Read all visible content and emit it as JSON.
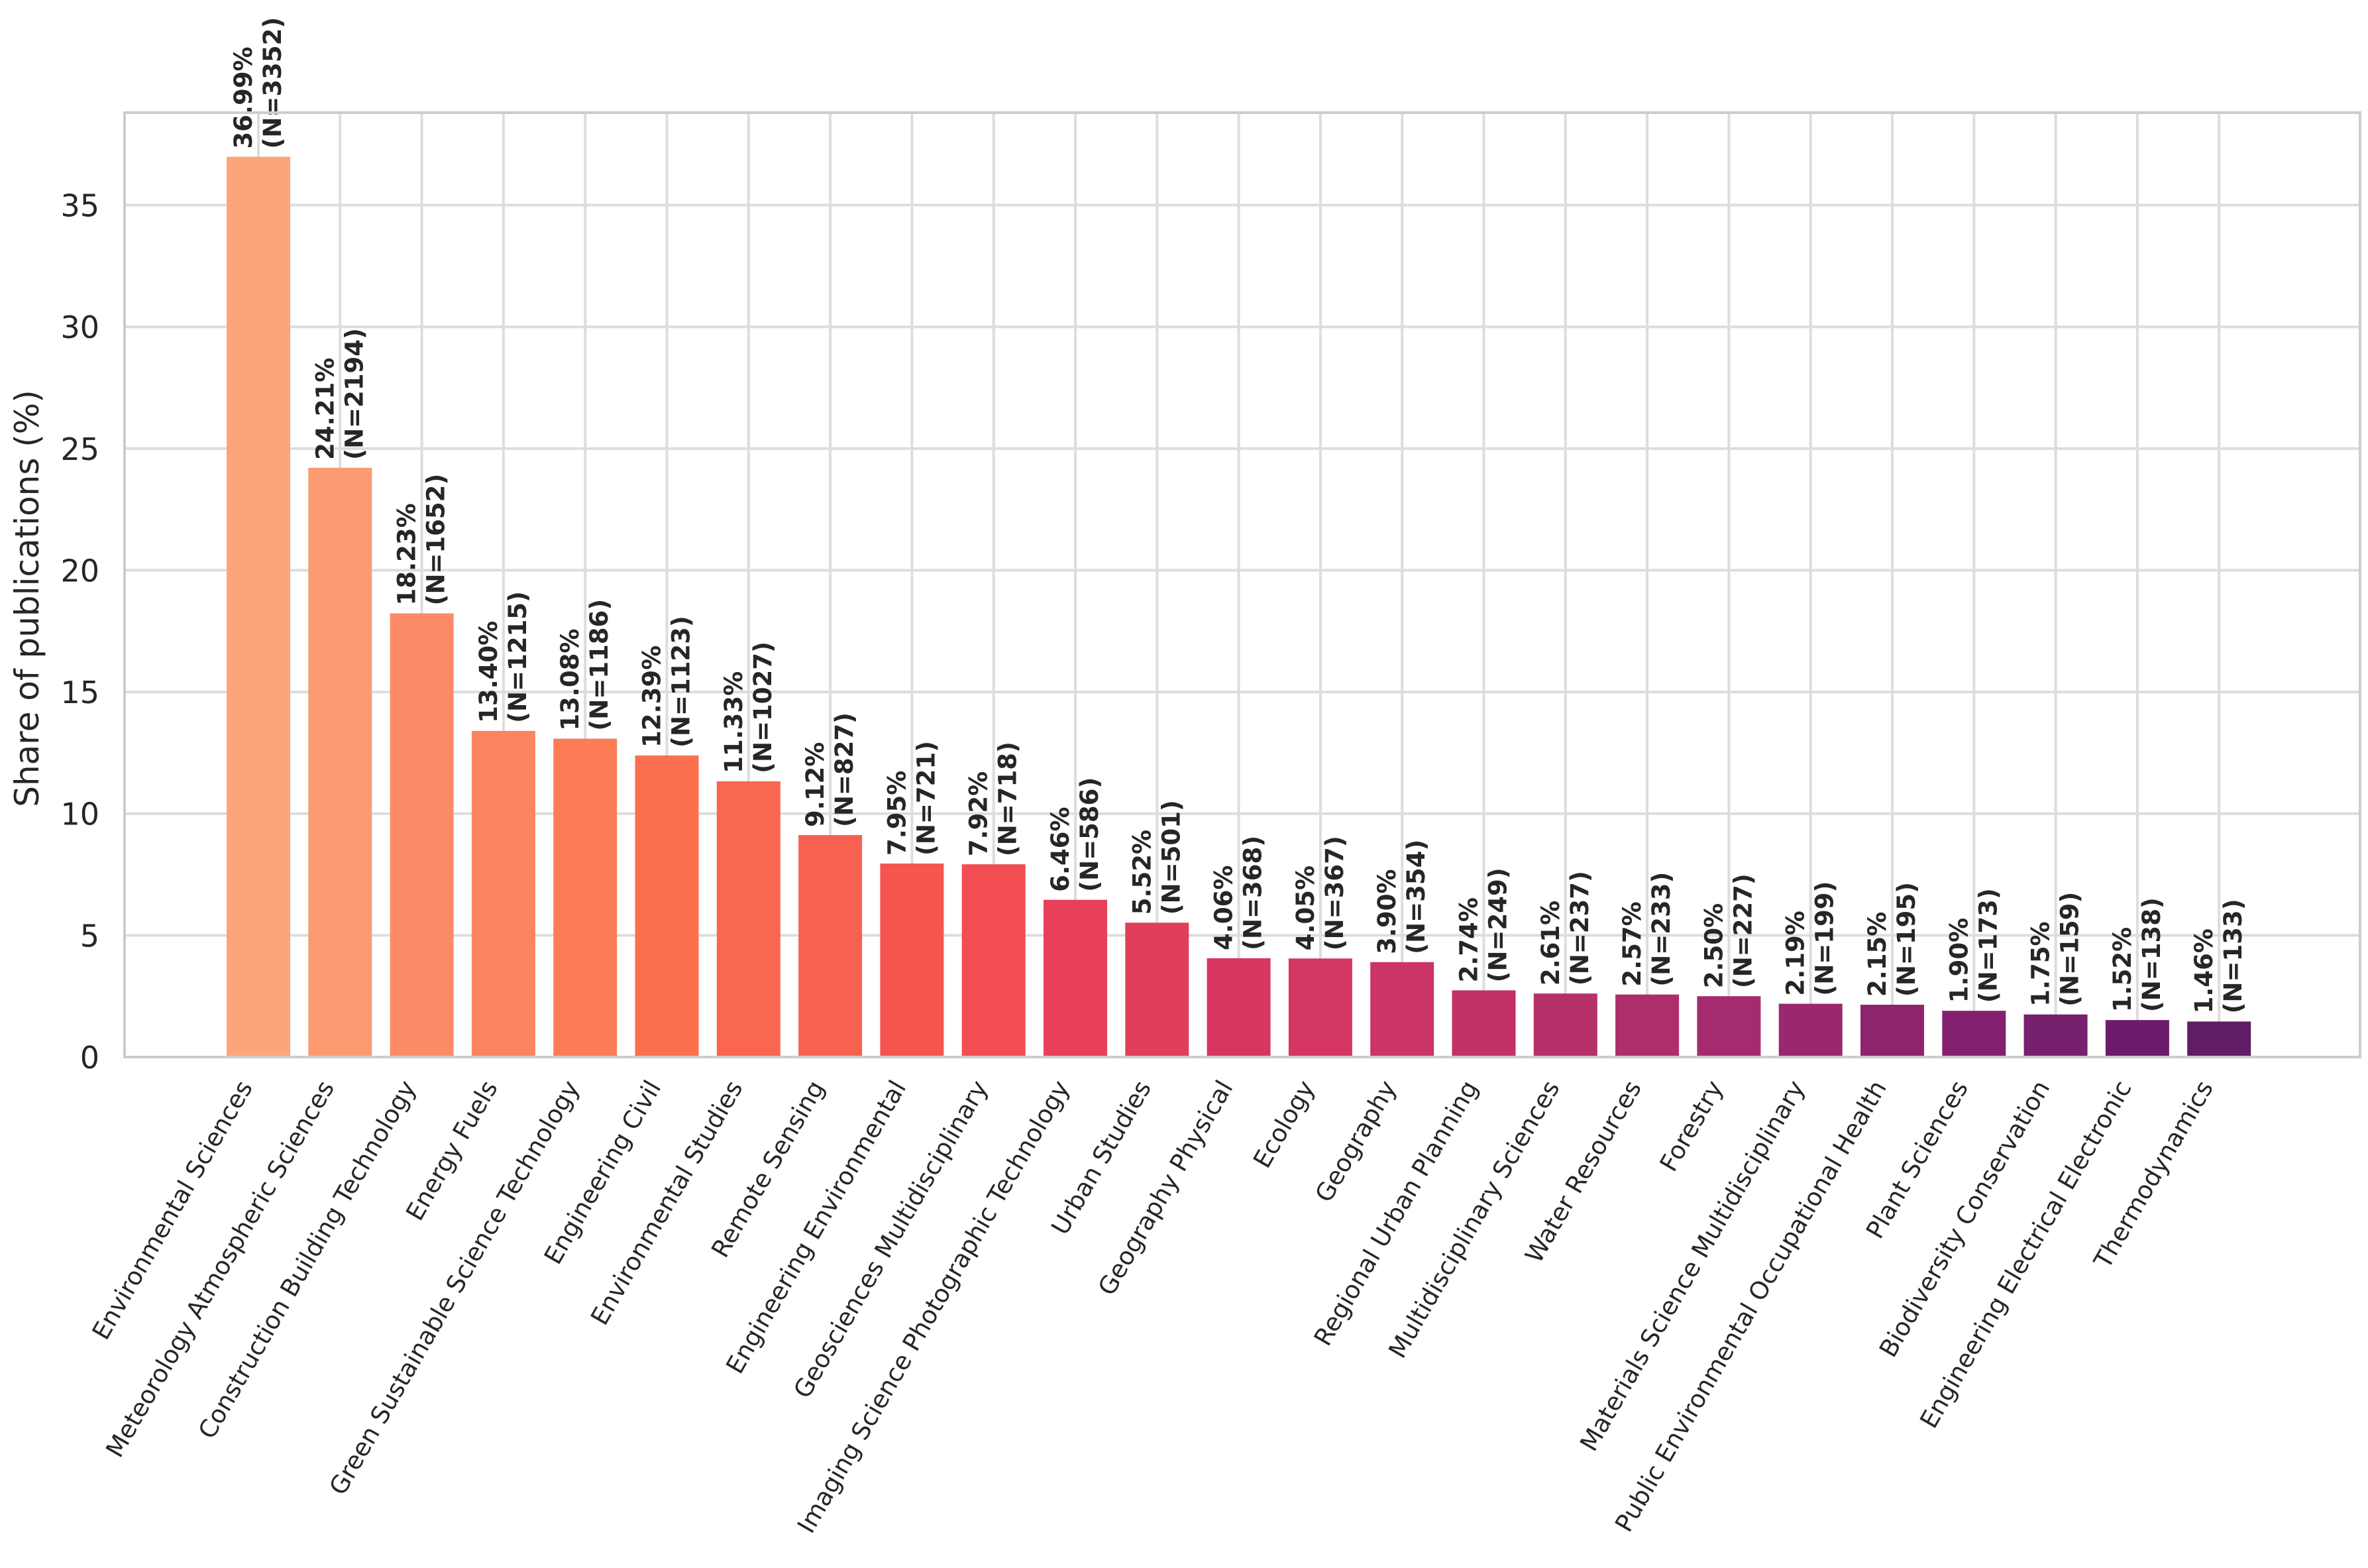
{
  "chart_data": {
    "type": "bar",
    "title": "",
    "xlabel": "",
    "ylabel": "Share of publications (%)",
    "ylim": [
      0,
      38.8
    ],
    "yticks": [
      0,
      5,
      10,
      15,
      20,
      25,
      30,
      35
    ],
    "grid": true,
    "categories": [
      "Environmental Sciences",
      "Meteorology Atmospheric Sciences",
      "Construction Building Technology",
      "Energy Fuels",
      "Green Sustainable Science Technology",
      "Engineering Civil",
      "Environmental Studies",
      "Remote Sensing",
      "Engineering Environmental",
      "Geosciences Multidisciplinary",
      "Imaging Science Photographic Technology",
      "Urban Studies",
      "Geography Physical",
      "Ecology",
      "Geography",
      "Regional Urban Planning",
      "Multidisciplinary Sciences",
      "Water Resources",
      "Forestry",
      "Materials Science Multidisciplinary",
      "Public Environmental Occupational Health",
      "Plant Sciences",
      "Biodiversity Conservation",
      "Engineering Electrical Electronic",
      "Thermodynamics"
    ],
    "values": [
      36.99,
      24.21,
      18.23,
      13.4,
      13.08,
      12.39,
      11.33,
      9.12,
      7.95,
      7.92,
      6.46,
      5.52,
      4.06,
      4.05,
      3.9,
      2.74,
      2.61,
      2.57,
      2.5,
      2.19,
      2.15,
      1.9,
      1.75,
      1.52,
      1.46
    ],
    "counts": [
      3352,
      2194,
      1652,
      1215,
      1186,
      1123,
      1027,
      827,
      721,
      718,
      586,
      501,
      368,
      367,
      354,
      249,
      237,
      233,
      227,
      199,
      195,
      173,
      159,
      138,
      133
    ],
    "pct_labels": [
      "36.99%",
      "24.21%",
      "18.23%",
      "13.40%",
      "13.08%",
      "12.39%",
      "11.33%",
      "9.12%",
      "7.95%",
      "7.92%",
      "6.46%",
      "5.52%",
      "4.06%",
      "4.05%",
      "3.90%",
      "2.74%",
      "2.61%",
      "2.57%",
      "2.50%",
      "2.19%",
      "2.15%",
      "1.90%",
      "1.75%",
      "1.52%",
      "1.46%"
    ],
    "count_labels": [
      "(N=3352)",
      "(N=2194)",
      "(N=1652)",
      "(N=1215)",
      "(N=1186)",
      "(N=1123)",
      "(N=1027)",
      "(N=827)",
      "(N=721)",
      "(N=718)",
      "(N=586)",
      "(N=501)",
      "(N=368)",
      "(N=367)",
      "(N=354)",
      "(N=249)",
      "(N=237)",
      "(N=233)",
      "(N=227)",
      "(N=199)",
      "(N=195)",
      "(N=173)",
      "(N=159)",
      "(N=138)",
      "(N=133)"
    ],
    "colors": [
      "#FCA57A",
      "#FC9B72",
      "#FC8C67",
      "#FC8460",
      "#FC7C58",
      "#FB7150",
      "#FA6750",
      "#F76250",
      "#F4564E",
      "#F14D53",
      "#E8405A",
      "#E13E5C",
      "#D6365F",
      "#D43862",
      "#CB3466",
      "#C23268",
      "#B6306A",
      "#AE2E6C",
      "#A42C6E",
      "#9B286F",
      "#8E246D",
      "#82206E",
      "#77206D",
      "#6C1C6A",
      "#611C66"
    ]
  }
}
